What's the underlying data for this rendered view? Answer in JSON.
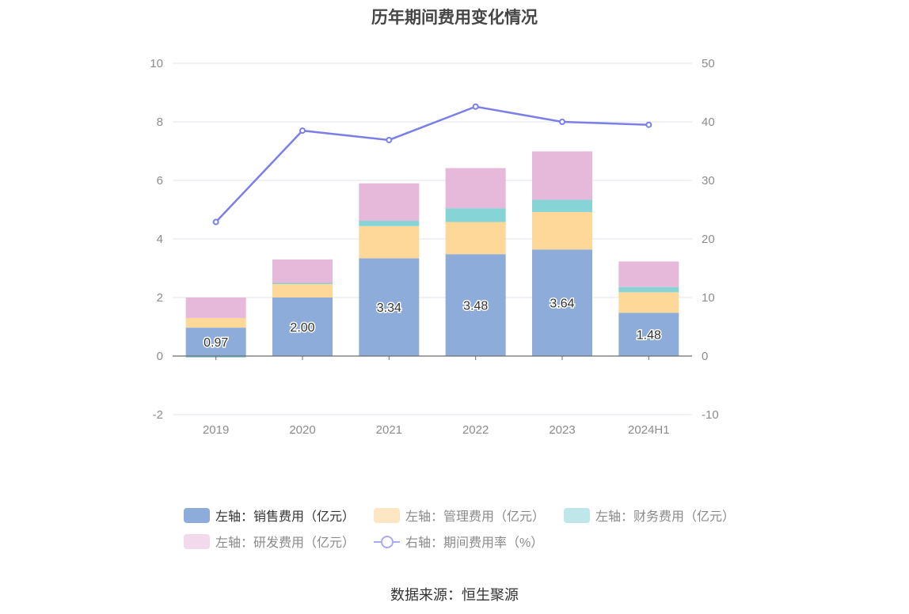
{
  "title": "历年期间费用变化情况",
  "source": "数据来源：恒生聚源",
  "colors": {
    "sales": "#8eacd9",
    "admin": "#fdd899",
    "finance": "#86d4d6",
    "rnd": "#e6b8da",
    "rate": "#7b7fe8",
    "grid": "#e0e4ef",
    "axis": "#6e6e6e"
  },
  "legend": [
    {
      "label": "左轴：销售费用（亿元）",
      "series": "sales",
      "kind": "bar",
      "swatch": "#8eacd9"
    },
    {
      "label": "左轴：管理费用（亿元）",
      "series": "admin",
      "kind": "bar",
      "swatch": "#fce6c3"
    },
    {
      "label": "左轴：财务费用（亿元）",
      "series": "finance",
      "kind": "bar",
      "swatch": "#bfe6e8"
    },
    {
      "label": "左轴：研发费用（亿元）",
      "series": "rnd",
      "kind": "bar",
      "swatch": "#f2d9ec"
    },
    {
      "label": "右轴：期间费用率（%）",
      "series": "rate",
      "kind": "line",
      "swatch": "#a9abf0"
    }
  ],
  "chart_data": {
    "type": "bar",
    "stacked": true,
    "title": "历年期间费用变化情况",
    "categories": [
      "2019",
      "2020",
      "2021",
      "2022",
      "2023",
      "2024H1"
    ],
    "series": [
      {
        "name": "左轴：销售费用（亿元）",
        "key": "sales",
        "axis": "left",
        "type": "bar",
        "values": [
          0.97,
          2.0,
          3.34,
          3.48,
          3.64,
          1.48
        ],
        "show_labels": true
      },
      {
        "name": "左轴：管理费用（亿元）",
        "key": "admin",
        "axis": "left",
        "type": "bar",
        "values": [
          0.33,
          0.46,
          1.1,
          1.1,
          1.28,
          0.7
        ]
      },
      {
        "name": "左轴：财务费用（亿元）",
        "key": "finance",
        "axis": "left",
        "type": "bar",
        "values": [
          -0.05,
          0.04,
          0.18,
          0.47,
          0.42,
          0.18
        ]
      },
      {
        "name": "左轴：研发费用（亿元）",
        "key": "rnd",
        "axis": "left",
        "type": "bar",
        "values": [
          0.7,
          0.8,
          1.28,
          1.37,
          1.65,
          0.87
        ]
      },
      {
        "name": "右轴：期间费用率（%）",
        "key": "rate",
        "axis": "right",
        "type": "line",
        "values": [
          22.9,
          38.5,
          36.9,
          42.6,
          40.0,
          39.5
        ]
      }
    ],
    "left_axis": {
      "min": -2,
      "max": 10,
      "ticks": [
        -2,
        0,
        2,
        4,
        6,
        8,
        10
      ]
    },
    "right_axis": {
      "min": -10,
      "max": 50,
      "ticks": [
        -10,
        0,
        10,
        20,
        30,
        40,
        50
      ]
    },
    "grid": true,
    "legend_position": "bottom"
  }
}
